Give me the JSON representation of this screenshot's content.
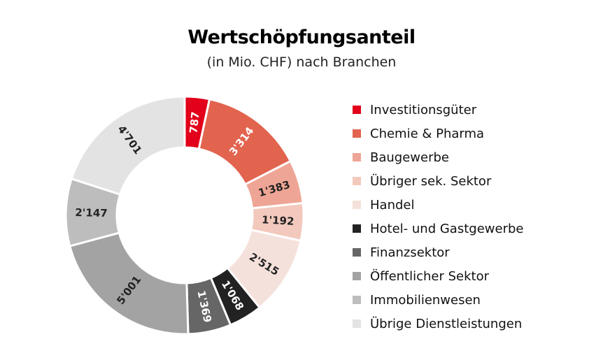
{
  "chart_data": {
    "type": "pie",
    "variant": "donut",
    "title": "Wertschöpfungsanteil",
    "subtitle": "(in Mio. CHF) nach Branchen",
    "legend_position": "right",
    "slices": [
      {
        "name": "Investitionsgüter",
        "value": 787,
        "label": "787",
        "color": "#e2001a",
        "label_color": "#ffffff"
      },
      {
        "name": "Chemie & Pharma",
        "value": 3314,
        "label": "3'314",
        "color": "#e2644f",
        "label_color": "#ffffff"
      },
      {
        "name": "Baugewerbe",
        "value": 1383,
        "label": "1'383",
        "color": "#eea595",
        "label_color": "#222222"
      },
      {
        "name": "Übriger sek. Sektor",
        "value": 1192,
        "label": "1'192",
        "color": "#f3c9bd",
        "label_color": "#222222"
      },
      {
        "name": "Handel",
        "value": 2515,
        "label": "2'515",
        "color": "#f5e1dc",
        "label_color": "#222222"
      },
      {
        "name": "Hotel- und Gastgewerbe",
        "value": 1068,
        "label": "1'068",
        "color": "#222222",
        "label_color": "#ffffff"
      },
      {
        "name": "Finanzsektor",
        "value": 1369,
        "label": "1'369",
        "color": "#666666",
        "label_color": "#ffffff"
      },
      {
        "name": "Öffentlicher Sektor",
        "value": 5001,
        "label": "5'001",
        "color": "#a3a3a3",
        "label_color": "#222222"
      },
      {
        "name": "Immobilienwesen",
        "value": 2147,
        "label": "2'147",
        "color": "#bdbdbd",
        "label_color": "#222222"
      },
      {
        "name": "Übrige Dienstleistungen",
        "value": 4701,
        "label": "4'701",
        "color": "#e3e3e3",
        "label_color": "#222222"
      }
    ]
  }
}
